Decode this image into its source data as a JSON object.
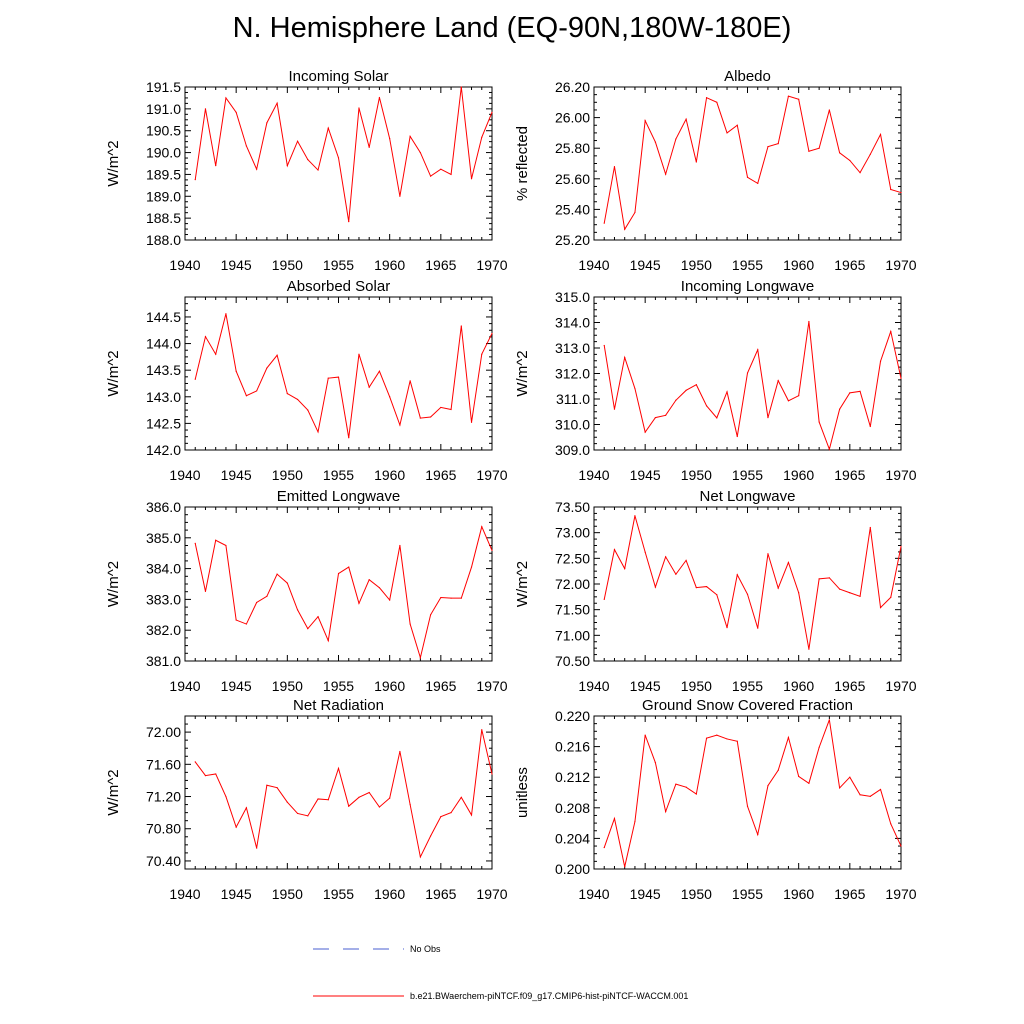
{
  "title": "N. Hemisphere Land (EQ-90N,180W-180E)",
  "colors": {
    "series": "#ff0000",
    "no_obs": "#4a5fd0",
    "axis": "#000000"
  },
  "legend": [
    {
      "label": "No Obs",
      "style": "dashed",
      "color": "#4a5fd0"
    },
    {
      "label": "b.e21.BWaerchem-piNTCF.f09_g17.CMIP6-hist-piNTCF-WACCM.001",
      "style": "solid",
      "color": "#ff0000"
    }
  ],
  "chart_data": [
    {
      "type": "line",
      "title": "Incoming Solar",
      "ylabel": "W/m^2",
      "xlim": [
        1940,
        1970
      ],
      "ylim": [
        188.0,
        191.5
      ],
      "yticks": [
        "188.0",
        "188.5",
        "189.0",
        "189.5",
        "190.0",
        "190.5",
        "191.0",
        "191.5"
      ],
      "xticks": [
        "1940",
        "1945",
        "1950",
        "1955",
        "1960",
        "1965",
        "1970"
      ],
      "x": [
        1941,
        1942,
        1943,
        1944,
        1945,
        1946,
        1947,
        1948,
        1949,
        1950,
        1951,
        1952,
        1953,
        1954,
        1955,
        1956,
        1957,
        1958,
        1959,
        1960,
        1961,
        1962,
        1963,
        1964,
        1965,
        1966,
        1967,
        1968,
        1969,
        1970
      ],
      "series": [
        {
          "values": [
            189.38,
            191.0,
            189.7,
            191.25,
            190.92,
            190.15,
            189.62,
            190.68,
            191.13,
            189.7,
            190.26,
            189.84,
            189.6,
            190.56,
            189.88,
            188.42,
            191.02,
            190.12,
            191.26,
            190.32,
            189.0,
            190.37,
            190.0,
            189.46,
            189.62,
            189.5,
            191.5,
            189.4,
            190.35,
            190.92
          ]
        }
      ]
    },
    {
      "type": "line",
      "title": "Albedo",
      "ylabel": "% reflected",
      "xlim": [
        1940,
        1970
      ],
      "ylim": [
        25.2,
        26.2
      ],
      "yticks": [
        "25.20",
        "25.40",
        "25.60",
        "25.80",
        "26.00",
        "26.20"
      ],
      "xticks": [
        "1940",
        "1945",
        "1950",
        "1955",
        "1960",
        "1965",
        "1970"
      ],
      "x": [
        1941,
        1942,
        1943,
        1944,
        1945,
        1946,
        1947,
        1948,
        1949,
        1950,
        1951,
        1952,
        1953,
        1954,
        1955,
        1956,
        1957,
        1958,
        1959,
        1960,
        1961,
        1962,
        1963,
        1964,
        1965,
        1966,
        1967,
        1968,
        1969,
        1970
      ],
      "series": [
        {
          "values": [
            25.31,
            25.68,
            25.27,
            25.38,
            25.98,
            25.84,
            25.63,
            25.86,
            25.99,
            25.71,
            26.13,
            26.1,
            25.9,
            25.95,
            25.61,
            25.57,
            25.81,
            25.83,
            26.14,
            26.12,
            25.78,
            25.8,
            26.05,
            25.77,
            25.72,
            25.64,
            25.76,
            25.89,
            25.53,
            25.51
          ]
        }
      ]
    },
    {
      "type": "line",
      "title": "Absorbed Solar",
      "ylabel": "W/m^2",
      "xlim": [
        1940,
        1970
      ],
      "ylim": [
        142.0,
        144.875
      ],
      "yticks": [
        "142.0",
        "142.5",
        "143.0",
        "143.5",
        "144.0",
        "144.5"
      ],
      "xticks": [
        "1940",
        "1945",
        "1950",
        "1955",
        "1960",
        "1965",
        "1970"
      ],
      "x": [
        1941,
        1942,
        1943,
        1944,
        1945,
        1946,
        1947,
        1948,
        1949,
        1950,
        1951,
        1952,
        1953,
        1954,
        1955,
        1956,
        1957,
        1958,
        1959,
        1960,
        1961,
        1962,
        1963,
        1964,
        1965,
        1966,
        1967,
        1968,
        1969,
        1970
      ],
      "series": [
        {
          "values": [
            143.33,
            144.13,
            143.8,
            144.56,
            143.48,
            143.02,
            143.11,
            143.54,
            143.78,
            143.06,
            142.95,
            142.75,
            142.34,
            143.35,
            143.37,
            142.23,
            143.8,
            143.18,
            143.48,
            143.0,
            142.47,
            143.3,
            142.6,
            142.62,
            142.8,
            142.76,
            144.33,
            142.52,
            143.8,
            144.19
          ]
        }
      ]
    },
    {
      "type": "line",
      "title": "Incoming Longwave",
      "ylabel": "W/m^2",
      "xlim": [
        1940,
        1970
      ],
      "ylim": [
        309.0,
        315.0
      ],
      "yticks": [
        "309.0",
        "310.0",
        "311.0",
        "312.0",
        "313.0",
        "314.0",
        "315.0"
      ],
      "xticks": [
        "1940",
        "1945",
        "1950",
        "1955",
        "1960",
        "1965",
        "1970"
      ],
      "x": [
        1941,
        1942,
        1943,
        1944,
        1945,
        1946,
        1947,
        1948,
        1949,
        1950,
        1951,
        1952,
        1953,
        1954,
        1955,
        1956,
        1957,
        1958,
        1959,
        1960,
        1961,
        1962,
        1963,
        1964,
        1965,
        1966,
        1967,
        1968,
        1969,
        1970
      ],
      "series": [
        {
          "values": [
            313.1,
            310.6,
            312.63,
            311.41,
            309.7,
            310.27,
            310.36,
            310.95,
            311.34,
            311.56,
            310.73,
            310.26,
            311.28,
            309.53,
            312.02,
            312.93,
            310.27,
            311.72,
            310.93,
            311.13,
            314.04,
            310.1,
            309.03,
            310.6,
            311.24,
            311.3,
            309.92,
            312.48,
            313.65,
            311.81
          ]
        }
      ]
    },
    {
      "type": "line",
      "title": "Emitted Longwave",
      "ylabel": "W/m^2",
      "xlim": [
        1940,
        1970
      ],
      "ylim": [
        381.0,
        386.0
      ],
      "yticks": [
        "381.0",
        "382.0",
        "383.0",
        "384.0",
        "385.0",
        "386.0"
      ],
      "xticks": [
        "1940",
        "1945",
        "1950",
        "1955",
        "1960",
        "1965",
        "1970"
      ],
      "x": [
        1941,
        1942,
        1943,
        1944,
        1945,
        1946,
        1947,
        1948,
        1949,
        1950,
        1951,
        1952,
        1953,
        1954,
        1955,
        1956,
        1957,
        1958,
        1959,
        1960,
        1961,
        1962,
        1963,
        1964,
        1965,
        1966,
        1967,
        1968,
        1969,
        1970
      ],
      "series": [
        {
          "values": [
            384.82,
            383.26,
            384.92,
            384.75,
            382.33,
            382.2,
            382.9,
            383.1,
            383.82,
            383.53,
            382.66,
            382.05,
            382.44,
            381.66,
            383.84,
            384.05,
            382.87,
            383.64,
            383.38,
            382.98,
            384.75,
            382.2,
            381.11,
            382.5,
            383.06,
            383.04,
            383.04,
            384.05,
            385.36,
            384.59
          ]
        }
      ]
    },
    {
      "type": "line",
      "title": "Net Longwave",
      "ylabel": "W/m^2",
      "xlim": [
        1940,
        1970
      ],
      "ylim": [
        70.5,
        73.5
      ],
      "yticks": [
        "70.50",
        "71.00",
        "71.50",
        "72.00",
        "72.50",
        "73.00",
        "73.50"
      ],
      "xticks": [
        "1940",
        "1945",
        "1950",
        "1955",
        "1960",
        "1965",
        "1970"
      ],
      "x": [
        1941,
        1942,
        1943,
        1944,
        1945,
        1946,
        1947,
        1948,
        1949,
        1950,
        1951,
        1952,
        1953,
        1954,
        1955,
        1956,
        1957,
        1958,
        1959,
        1960,
        1961,
        1962,
        1963,
        1964,
        1965,
        1966,
        1967,
        1968,
        1969,
        1970
      ],
      "series": [
        {
          "values": [
            71.7,
            72.67,
            72.3,
            73.33,
            72.62,
            71.94,
            72.53,
            72.19,
            72.46,
            71.93,
            71.95,
            71.79,
            71.15,
            72.18,
            71.8,
            71.14,
            72.59,
            71.92,
            72.42,
            71.83,
            70.73,
            72.1,
            72.12,
            71.9,
            71.83,
            71.76,
            73.1,
            71.54,
            71.74,
            72.73
          ]
        }
      ]
    },
    {
      "type": "line",
      "title": "Net Radiation",
      "ylabel": "W/m^2",
      "xlim": [
        1940,
        1970
      ],
      "ylim": [
        70.3,
        72.2
      ],
      "yticks": [
        "70.40",
        "70.80",
        "71.20",
        "71.60",
        "72.00"
      ],
      "xticks": [
        "1940",
        "1945",
        "1950",
        "1955",
        "1960",
        "1965",
        "1970"
      ],
      "x": [
        1941,
        1942,
        1943,
        1944,
        1945,
        1946,
        1947,
        1948,
        1949,
        1950,
        1951,
        1952,
        1953,
        1954,
        1955,
        1956,
        1957,
        1958,
        1959,
        1960,
        1961,
        1962,
        1963,
        1964,
        1965,
        1966,
        1967,
        1968,
        1969,
        1970
      ],
      "series": [
        {
          "values": [
            71.63,
            71.46,
            71.48,
            71.2,
            70.82,
            71.06,
            70.56,
            71.34,
            71.31,
            71.13,
            70.99,
            70.96,
            71.17,
            71.16,
            71.55,
            71.08,
            71.19,
            71.25,
            71.07,
            71.18,
            71.76,
            71.1,
            70.45,
            70.71,
            70.95,
            71.0,
            71.19,
            70.97,
            72.03,
            71.48
          ]
        }
      ]
    },
    {
      "type": "line",
      "title": "Ground Snow Covered Fraction",
      "ylabel": "unitless",
      "xlim": [
        1940,
        1970
      ],
      "ylim": [
        0.2,
        0.22
      ],
      "yticks": [
        "0.200",
        "0.204",
        "0.208",
        "0.212",
        "0.216",
        "0.220"
      ],
      "xticks": [
        "1940",
        "1945",
        "1950",
        "1955",
        "1960",
        "1965",
        "1970"
      ],
      "x": [
        1941,
        1942,
        1943,
        1944,
        1945,
        1946,
        1947,
        1948,
        1949,
        1950,
        1951,
        1952,
        1953,
        1954,
        1955,
        1956,
        1957,
        1958,
        1959,
        1960,
        1961,
        1962,
        1963,
        1964,
        1965,
        1966,
        1967,
        1968,
        1969,
        1970
      ],
      "series": [
        {
          "values": [
            0.2028,
            0.2066,
            0.2003,
            0.2062,
            0.2175,
            0.2139,
            0.2075,
            0.2111,
            0.2107,
            0.2098,
            0.2171,
            0.2175,
            0.217,
            0.2167,
            0.2082,
            0.2045,
            0.2109,
            0.2129,
            0.2172,
            0.2121,
            0.2112,
            0.2159,
            0.2195,
            0.2106,
            0.212,
            0.2097,
            0.2095,
            0.2104,
            0.2059,
            0.203
          ]
        }
      ]
    }
  ]
}
